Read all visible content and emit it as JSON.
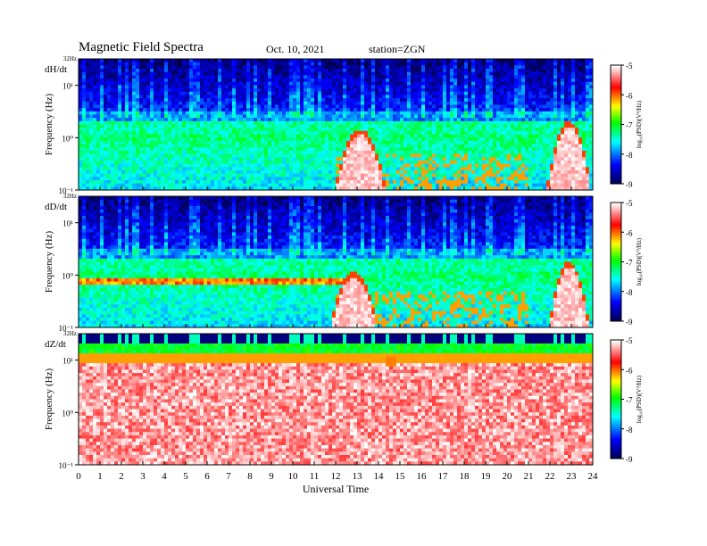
{
  "header": {
    "title": "Magnetic  Field  Spectra",
    "date": "Oct. 10, 2021",
    "station": "station=ZGN"
  },
  "chart_data": {
    "type": "heatmap",
    "xlabel": "Universal  Time",
    "x_ticks": [
      "0",
      "1",
      "2",
      "3",
      "4",
      "5",
      "6",
      "7",
      "8",
      "9",
      "10",
      "11",
      "12",
      "13",
      "14",
      "15",
      "16",
      "17",
      "18",
      "19",
      "20",
      "21",
      "22",
      "23",
      "24"
    ],
    "xlim": [
      0,
      24
    ],
    "ylabel": "Frequency  (Hz)",
    "y_scale": "log",
    "ylim": [
      0.1,
      32
    ],
    "y_tick_labels": [
      "10⁻¹",
      "10⁰",
      "10¹"
    ],
    "y_top_label": "32Hz",
    "colorbar": {
      "label": "log₁₀(PSD)(V²/Hz)",
      "ticks": [
        "-5",
        "-6",
        "-7",
        "-8",
        "-9"
      ],
      "range": [
        -9,
        -5
      ],
      "colors": [
        "#00004a",
        "#0000ff",
        "#00ffff",
        "#00ff00",
        "#ffff00",
        "#ff0000",
        "#ffffff"
      ]
    },
    "panels": [
      {
        "component": "dH/dt",
        "events": [
          {
            "name": "burst",
            "t": [
              12.0,
              14.3
            ],
            "f_peak": 1.1
          },
          {
            "name": "burst",
            "t": [
              21.9,
              23.9
            ],
            "f_peak": 1.6
          }
        ]
      },
      {
        "component": "dD/dt",
        "events": [
          {
            "name": "burst",
            "t": [
              11.8,
              13.9
            ],
            "f_peak": 0.9
          },
          {
            "name": "burst",
            "t": [
              22.0,
              23.8
            ],
            "f_peak": 1.4
          }
        ]
      },
      {
        "component": "dZ/dt",
        "events": [
          {
            "name": "band",
            "t": [
              14.3,
              14.9
            ],
            "f_peak": 11
          }
        ]
      }
    ]
  }
}
